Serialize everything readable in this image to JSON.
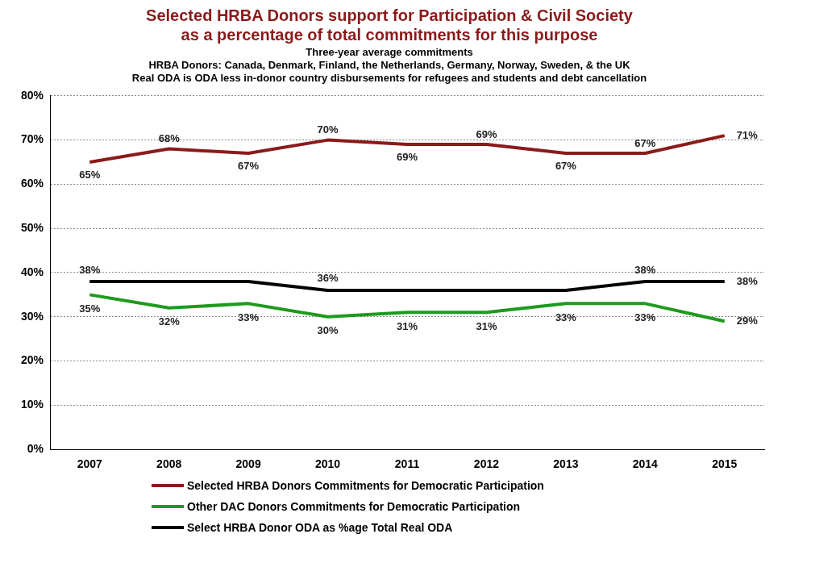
{
  "chart_data": {
    "type": "line",
    "title": "Selected HRBA Donors support for Participation & Civil Society\nas a percentage of total commitments for this purpose",
    "subtitle": "Three-year average commitments\nHRBA Donors: Canada, Denmark, Finland, the Netherlands, Germany, Norway, Sweden, & the UK\nReal ODA is ODA less in-donor country disbursements for refugees and students and debt cancellation",
    "categories": [
      "2007",
      "2008",
      "2009",
      "2010",
      "2011",
      "2012",
      "2013",
      "2014",
      "2015"
    ],
    "series": [
      {
        "name": "Selected HRBA Donors Commitments for Democratic Participation",
        "color": "#8b1a1a",
        "values": [
          65,
          68,
          67,
          70,
          69,
          69,
          67,
          67,
          71
        ],
        "value_labels": [
          "65%",
          "68%",
          "67%",
          "70%",
          "69%",
          "69%",
          "67%",
          "67%",
          "71%"
        ]
      },
      {
        "name": "Other DAC Donors Commitments for Democratic Participation",
        "color": "#1e9a1e",
        "values": [
          35,
          32,
          33,
          30,
          31,
          31,
          33,
          33,
          29
        ],
        "value_labels": [
          "35%",
          "32%",
          "33%",
          "30%",
          "31%",
          "31%",
          "33%",
          "33%",
          "29%"
        ]
      },
      {
        "name": "Select HRBA Donor ODA as %age Total Real ODA",
        "color": "#000000",
        "values": [
          38,
          38,
          38,
          36,
          36,
          36,
          36,
          38,
          38
        ],
        "value_labels": [
          "38%",
          null,
          null,
          "36%",
          null,
          null,
          null,
          "38%",
          "38%"
        ]
      }
    ],
    "ylim": [
      0,
      80
    ],
    "yticks": [
      {
        "value": 0,
        "label": "0%"
      },
      {
        "value": 10,
        "label": "10%"
      },
      {
        "value": 20,
        "label": "20%"
      },
      {
        "value": 30,
        "label": "30%"
      },
      {
        "value": 40,
        "label": "40%"
      },
      {
        "value": 50,
        "label": "50%"
      },
      {
        "value": 60,
        "label": "60%"
      },
      {
        "value": 70,
        "label": "70%"
      },
      {
        "value": 80,
        "label": "80%"
      }
    ],
    "grid": "y",
    "legend": "bottom",
    "marker": "none",
    "line_style": "solid"
  }
}
